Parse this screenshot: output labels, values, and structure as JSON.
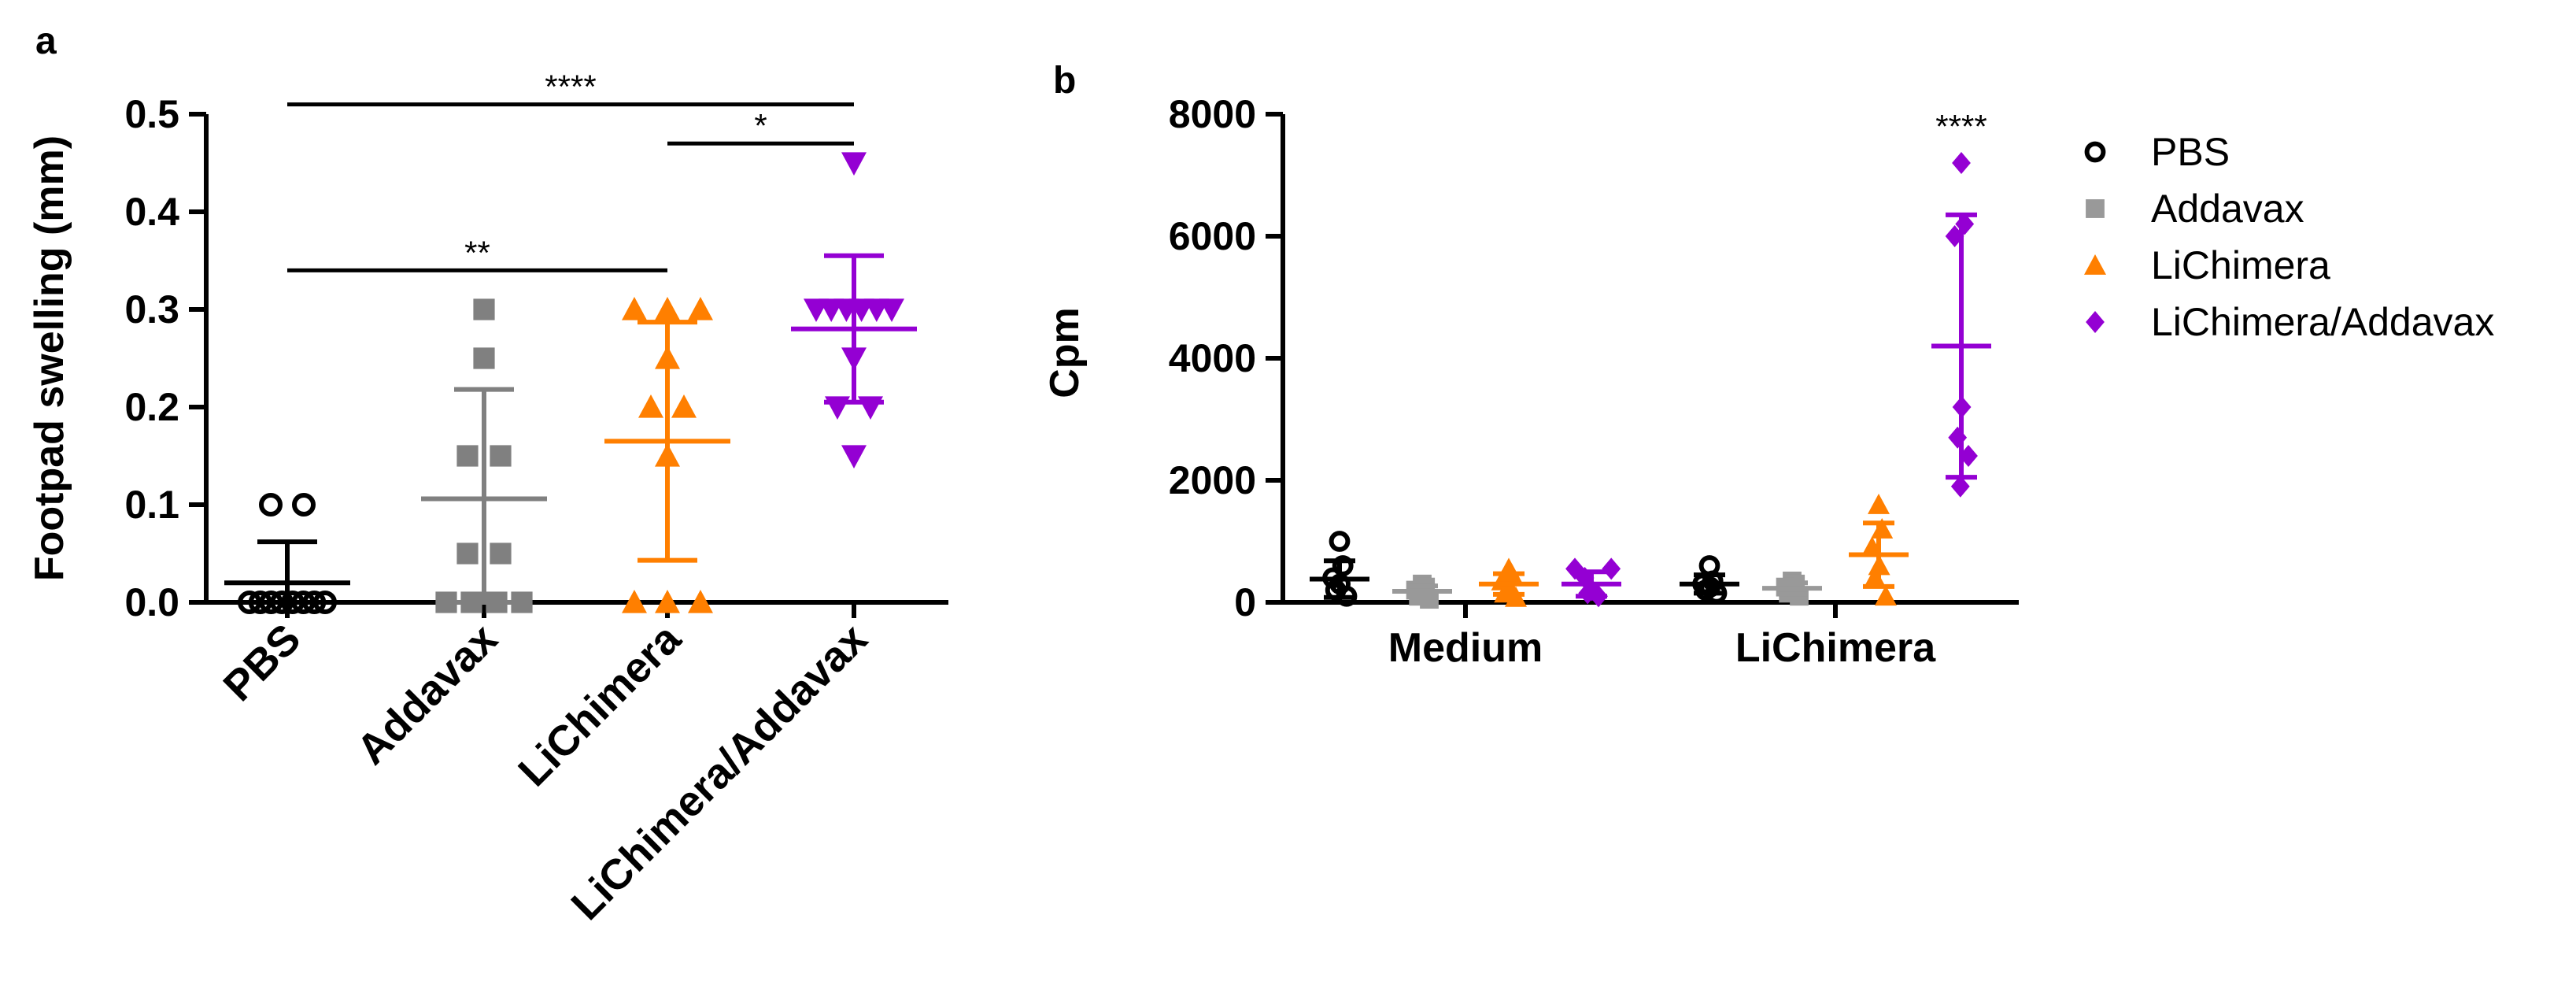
{
  "chart_data": [
    {
      "panel_label": "a",
      "type": "scatter",
      "ylabel": "Footpad swelling (mm)",
      "ylim": [
        0,
        0.5
      ],
      "yticks": [
        "0.0",
        "0.1",
        "0.2",
        "0.3",
        "0.4",
        "0.5"
      ],
      "categories": [
        "PBS",
        "Addavax",
        "LiChimera",
        "LiChimera/Addavax"
      ],
      "series": [
        {
          "name": "PBS",
          "color": "#000000",
          "marker": "open-circle",
          "points": [
            0.1,
            0.1,
            0,
            0,
            0,
            0,
            0,
            0,
            0,
            0
          ],
          "mean": 0.02,
          "sd": 0.042
        },
        {
          "name": "Addavax",
          "color": "#808080",
          "marker": "square",
          "points": [
            0.3,
            0.25,
            0.15,
            0.15,
            0.05,
            0.05,
            0,
            0,
            0,
            0
          ],
          "mean": 0.106,
          "sd": 0.112
        },
        {
          "name": "LiChimera",
          "color": "#FF7F00",
          "marker": "triangle-up",
          "points": [
            0.3,
            0.3,
            0.3,
            0.25,
            0.2,
            0.2,
            0.15,
            0,
            0,
            0
          ],
          "mean": 0.165,
          "sd": 0.122
        },
        {
          "name": "LiChimera/Addavax",
          "color": "#9400D3",
          "marker": "triangle-down",
          "points": [
            0.45,
            0.3,
            0.3,
            0.3,
            0.3,
            0.3,
            0.3,
            0.25,
            0.2,
            0.2,
            0.15
          ],
          "mean": 0.28,
          "sd": 0.075
        }
      ],
      "significance": [
        {
          "from": "PBS",
          "to": "LiChimera/Addavax",
          "y": 0.51,
          "label": "****"
        },
        {
          "from": "LiChimera",
          "to": "LiChimera/Addavax",
          "y": 0.47,
          "label": "*"
        },
        {
          "from": "PBS",
          "to": "LiChimera",
          "y": 0.34,
          "label": "**"
        }
      ],
      "grid": false
    },
    {
      "panel_label": "b",
      "type": "scatter",
      "ylabel": "Cpm",
      "ylim": [
        0,
        8000
      ],
      "yticks": [
        "0",
        "2000",
        "4000",
        "6000",
        "8000"
      ],
      "groups": [
        "Medium",
        "LiChimera"
      ],
      "series": [
        {
          "name": "PBS",
          "color": "#000000",
          "marker": "open-circle",
          "groups": [
            {
              "points": [
                1000,
                600,
                400,
                300,
                200,
                100
              ],
              "mean": 380,
              "sd": 300
            },
            {
              "points": [
                600,
                350,
                300,
                250,
                200,
                150
              ],
              "mean": 300,
              "sd": 150
            }
          ]
        },
        {
          "name": "Addavax",
          "color": "#999999",
          "marker": "square",
          "groups": [
            {
              "points": [
                300,
                250,
                200,
                150,
                100,
                50
              ],
              "mean": 180,
              "sd": 90
            },
            {
              "points": [
                350,
                300,
                250,
                200,
                150,
                100
              ],
              "mean": 230,
              "sd": 90
            }
          ]
        },
        {
          "name": "LiChimera",
          "color": "#FF7F00",
          "marker": "triangle-up",
          "groups": [
            {
              "points": [
                550,
                450,
                350,
                250,
                150,
                80
              ],
              "mean": 300,
              "sd": 170
            },
            {
              "points": [
                1600,
                1200,
                900,
                600,
                400,
                100
              ],
              "mean": 780,
              "sd": 520
            }
          ]
        },
        {
          "name": "LiChimera/Addavax",
          "color": "#9400D3",
          "marker": "diamond",
          "groups": [
            {
              "points": [
                550,
                550,
                400,
                200,
                150,
                100
              ],
              "mean": 300,
              "sd": 200
            },
            {
              "points": [
                7200,
                6200,
                6000,
                3200,
                2700,
                2400,
                1900
              ],
              "mean": 4200,
              "sd": 2150
            }
          ]
        }
      ],
      "annotation": {
        "series": "LiChimera/Addavax",
        "group": "LiChimera",
        "label": "****"
      },
      "legend": {
        "position": "top-right",
        "entries": [
          "PBS",
          "Addavax",
          "LiChimera",
          "LiChimera/Addavax"
        ]
      },
      "grid": false
    }
  ]
}
